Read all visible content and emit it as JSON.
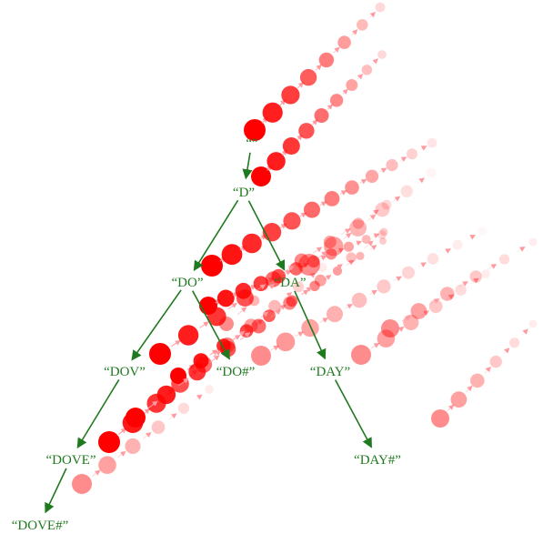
{
  "diagram": {
    "colors": {
      "tree": "#1f7a1f",
      "dots": "#ff0000",
      "background": "#ffffff"
    },
    "nodes": [
      {
        "id": "root",
        "label": "“”"
      },
      {
        "id": "d",
        "label": "“D”"
      },
      {
        "id": "do",
        "label": "“DO”"
      },
      {
        "id": "da",
        "label": "“DA”"
      },
      {
        "id": "dov",
        "label": "“DOV”"
      },
      {
        "id": "do_end",
        "label": "“DO#”"
      },
      {
        "id": "day",
        "label": "“DAY”"
      },
      {
        "id": "dove",
        "label": "“DOVE”"
      },
      {
        "id": "day_end",
        "label": "“DAY#”"
      },
      {
        "id": "dove_end",
        "label": "“DOVE#”"
      }
    ],
    "edges": [
      [
        "root",
        "d"
      ],
      [
        "d",
        "do"
      ],
      [
        "d",
        "da"
      ],
      [
        "do",
        "dov"
      ],
      [
        "do",
        "do_end"
      ],
      [
        "da",
        "day"
      ],
      [
        "dov",
        "dove"
      ],
      [
        "day",
        "day_end"
      ],
      [
        "dove",
        "dove_end"
      ]
    ]
  }
}
